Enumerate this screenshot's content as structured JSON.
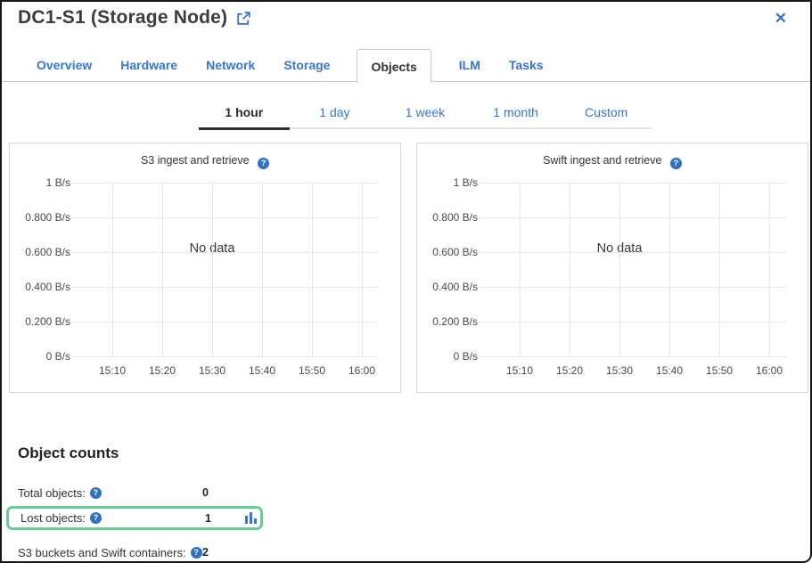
{
  "header": {
    "title": "DC1-S1 (Storage Node)"
  },
  "icons": {
    "help": "?",
    "close": "✕",
    "external_link": "open-in-new-icon",
    "lost_objects_chart": "bar-chart-icon"
  },
  "tabs": {
    "items": [
      {
        "label": "Overview",
        "active": false
      },
      {
        "label": "Hardware",
        "active": false
      },
      {
        "label": "Network",
        "active": false
      },
      {
        "label": "Storage",
        "active": false
      },
      {
        "label": "Objects",
        "active": true
      },
      {
        "label": "ILM",
        "active": false
      },
      {
        "label": "Tasks",
        "active": false
      }
    ]
  },
  "time_range": {
    "items": [
      {
        "label": "1 hour",
        "active": true
      },
      {
        "label": "1 day",
        "active": false
      },
      {
        "label": "1 week",
        "active": false
      },
      {
        "label": "1 month",
        "active": false
      },
      {
        "label": "Custom",
        "active": false
      }
    ]
  },
  "chart_data": [
    {
      "type": "line",
      "title": "S3 ingest and retrieve",
      "annotation": "No data",
      "series": [],
      "x_ticks": [
        "15:10",
        "15:20",
        "15:30",
        "15:40",
        "15:50",
        "16:00"
      ],
      "y_ticks_top_down": [
        "1 B/s",
        "0.800 B/s",
        "0.600 B/s",
        "0.400 B/s",
        "0.200 B/s",
        "0 B/s"
      ],
      "ylim": [
        0,
        1
      ],
      "y_unit": "B/s",
      "grid": true,
      "legend": false
    },
    {
      "type": "line",
      "title": "Swift ingest and retrieve",
      "annotation": "No data",
      "series": [],
      "x_ticks": [
        "15:10",
        "15:20",
        "15:30",
        "15:40",
        "15:50",
        "16:00"
      ],
      "y_ticks_top_down": [
        "1 B/s",
        "0.800 B/s",
        "0.600 B/s",
        "0.400 B/s",
        "0.200 B/s",
        "0 B/s"
      ],
      "ylim": [
        0,
        1
      ],
      "y_unit": "B/s",
      "grid": true,
      "legend": false
    }
  ],
  "object_counts": {
    "heading": "Object counts",
    "rows": [
      {
        "label": "Total objects:",
        "value": "0",
        "highlighted": false,
        "has_chart_icon": false
      },
      {
        "label": "Lost objects:",
        "value": "1",
        "highlighted": true,
        "has_chart_icon": true
      },
      {
        "label": "S3 buckets and Swift containers:",
        "value": "2",
        "highlighted": false,
        "has_chart_icon": false
      }
    ]
  },
  "colors": {
    "accent": "#3575d4",
    "tab_active_text": "#333333",
    "highlight_green": "#64cf92",
    "help_icon_bg": "#2d72c8",
    "grid": "#e8e8e8",
    "card_border": "#d6d6d6"
  }
}
